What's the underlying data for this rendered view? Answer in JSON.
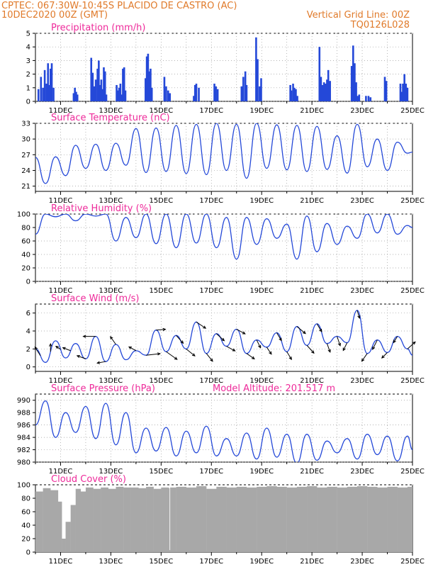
{
  "header": {
    "line1_left": "CPTEC:   067:30W-10:45S   PLACIDO DE CASTRO (AC)",
    "line2_left": "10DEC2020 00Z (GMT)",
    "line2_right": "Vertical Grid Line: 00Z",
    "line3_right": "TQ0126L028"
  },
  "colors": {
    "header": "#e07a2a",
    "title": "#ee2a9a",
    "line": "#2448d8",
    "bar": "#2448d8",
    "cloud": "#a8a8a8",
    "arrow": "#000000",
    "grid": "#9a9a9a"
  },
  "x_tick_labels": [
    "11DEC",
    "13DEC",
    "15DEC",
    "17DEC",
    "19DEC",
    "21DEC",
    "23DEC",
    "25DEC"
  ],
  "chart_data": [
    {
      "type": "bar",
      "title": "Precipitation (mm/h)",
      "xlim": [
        0,
        15
      ],
      "ylim": [
        0,
        5
      ],
      "yticks": [
        "0",
        "1",
        "2",
        "3",
        "4",
        "5"
      ],
      "grid": true,
      "x": [
        0.12,
        0.22,
        0.3,
        0.37,
        0.44,
        0.5,
        0.55,
        0.6,
        0.65,
        0.72,
        1.52,
        1.57,
        1.62,
        1.67,
        2.22,
        2.28,
        2.34,
        2.4,
        2.47,
        2.52,
        2.57,
        2.62,
        2.67,
        2.72,
        2.77,
        2.82,
        3.23,
        3.28,
        3.33,
        3.38,
        3.42,
        3.48,
        3.53,
        3.58,
        4.38,
        4.43,
        4.48,
        4.53,
        4.58,
        4.63,
        5.13,
        5.2,
        5.28,
        5.35,
        6.3,
        6.35,
        6.4,
        6.5,
        7.12,
        7.18,
        7.25,
        8.2,
        8.27,
        8.35,
        8.4,
        8.78,
        8.84,
        8.92,
        8.98,
        10.14,
        10.18,
        10.25,
        10.3,
        10.36,
        10.42,
        11.3,
        11.36,
        11.42,
        11.48,
        11.54,
        11.6,
        11.65,
        11.72,
        12.58,
        12.64,
        12.7,
        12.76,
        12.82,
        12.88,
        13.15,
        13.25,
        13.33,
        13.9,
        13.96,
        14.52,
        14.57,
        14.62,
        14.68,
        14.74,
        14.8
      ],
      "values": [
        0.9,
        1.8,
        1.0,
        2.3,
        1.3,
        2.8,
        1.2,
        2.4,
        2.8,
        1.0,
        0.6,
        1.0,
        0.7,
        0.5,
        3.2,
        2.1,
        1.1,
        1.6,
        2.4,
        3.0,
        1.2,
        1.6,
        0.9,
        2.5,
        2.2,
        0.5,
        1.2,
        0.8,
        1.0,
        1.3,
        0.5,
        2.4,
        2.5,
        0.8,
        1.7,
        3.3,
        3.5,
        2.2,
        2.4,
        1.0,
        1.8,
        1.1,
        0.8,
        0.6,
        0.4,
        1.2,
        1.3,
        1.0,
        1.3,
        1.1,
        0.9,
        1.1,
        1.8,
        2.2,
        1.2,
        4.7,
        3.1,
        1.1,
        1.7,
        1.2,
        0.8,
        1.3,
        1.0,
        0.9,
        0.4,
        4.0,
        1.8,
        1.2,
        1.4,
        1.3,
        1.6,
        2.3,
        1.5,
        2.6,
        4.1,
        2.8,
        1.4,
        0.4,
        0.5,
        0.4,
        0.4,
        0.3,
        1.8,
        1.5,
        1.3,
        0.7,
        1.3,
        2.0,
        1.3,
        1.0
      ]
    },
    {
      "type": "line",
      "title": "Surface Temperature (nC)",
      "xlim": [
        0,
        15
      ],
      "ylim": [
        20,
        33
      ],
      "yticks": [
        "21",
        "24",
        "27",
        "30",
        "33"
      ],
      "grid": true,
      "x": [
        0,
        0.4,
        0.8,
        1.2,
        1.6,
        2.0,
        2.4,
        2.8,
        3.2,
        3.6,
        4.0,
        4.4,
        4.8,
        5.2,
        5.6,
        6.0,
        6.4,
        6.8,
        7.2,
        7.6,
        8.0,
        8.4,
        8.8,
        9.2,
        9.6,
        10.0,
        10.4,
        10.8,
        11.2,
        11.6,
        12.0,
        12.4,
        12.8,
        13.2,
        13.6,
        14.0,
        14.4,
        14.8,
        15.0
      ],
      "values": [
        26.5,
        21.5,
        26.6,
        23.0,
        28.8,
        24.4,
        29.0,
        24.0,
        29.2,
        25.0,
        32.0,
        23.6,
        32.1,
        23.8,
        32.6,
        23.4,
        32.8,
        23.2,
        33.0,
        24.0,
        32.8,
        22.5,
        33.0,
        24.4,
        32.7,
        24.1,
        32.6,
        23.8,
        32.4,
        24.2,
        30.6,
        23.5,
        32.8,
        24.7,
        30.0,
        24.0,
        29.4,
        27.3,
        27.5
      ]
    },
    {
      "type": "line",
      "title": "Relative Humidity (%)",
      "xlim": [
        0,
        15
      ],
      "ylim": [
        0,
        100
      ],
      "yticks": [
        "0",
        "20",
        "40",
        "60",
        "80",
        "100"
      ],
      "grid": true,
      "x": [
        0,
        0.4,
        0.8,
        1.2,
        1.6,
        2.0,
        2.4,
        2.8,
        3.2,
        3.6,
        4.0,
        4.4,
        4.8,
        5.2,
        5.6,
        6.0,
        6.4,
        6.8,
        7.2,
        7.6,
        8.0,
        8.4,
        8.8,
        9.2,
        9.6,
        10.0,
        10.4,
        10.8,
        11.2,
        11.6,
        12.0,
        12.4,
        12.8,
        13.2,
        13.6,
        14.0,
        14.4,
        14.8,
        15.0
      ],
      "values": [
        70,
        100,
        96,
        100,
        90,
        100,
        97,
        100,
        60,
        95,
        65,
        100,
        56,
        100,
        50,
        100,
        57,
        100,
        50,
        95,
        33,
        95,
        55,
        93,
        64,
        85,
        33,
        97,
        44,
        86,
        55,
        82,
        64,
        100,
        72,
        100,
        70,
        83,
        80
      ]
    },
    {
      "type": "line",
      "title": "Surface Wind (m/s)",
      "xlim": [
        0,
        15
      ],
      "ylim": [
        -0.5,
        7
      ],
      "yticks": [
        "0",
        "2",
        "4",
        "6"
      ],
      "grid": true,
      "x": [
        0,
        0.4,
        0.8,
        1.2,
        1.6,
        2.0,
        2.4,
        2.8,
        3.2,
        3.6,
        4.0,
        4.4,
        4.8,
        5.2,
        5.6,
        6.0,
        6.4,
        6.8,
        7.2,
        7.6,
        8.0,
        8.4,
        8.8,
        9.2,
        9.6,
        10.0,
        10.4,
        10.8,
        11.2,
        11.6,
        12.0,
        12.4,
        12.8,
        13.2,
        13.6,
        14.0,
        14.4,
        14.8,
        15.0
      ],
      "values": [
        2.0,
        0.5,
        2.9,
        1.0,
        2.6,
        0.9,
        3.4,
        0.6,
        2.5,
        0.8,
        1.8,
        1.3,
        4.1,
        1.7,
        3.5,
        2.0,
        5.0,
        1.5,
        3.7,
        2.3,
        4.2,
        1.5,
        3.0,
        2.2,
        3.8,
        1.7,
        4.5,
        2.4,
        4.8,
        2.6,
        3.4,
        2.7,
        6.3,
        1.5,
        3.0,
        1.6,
        3.4,
        2.0,
        1.3
      ],
      "vectors": {
        "x": [
          0.2,
          0.6,
          1.0,
          1.4,
          2.0,
          2.4,
          2.8,
          3.2,
          4.0,
          4.4,
          4.8,
          5.2,
          5.6,
          6.0,
          6.4,
          6.8,
          7.2,
          7.6,
          8.0,
          8.4,
          8.8,
          9.2,
          9.6,
          10.0,
          10.4,
          10.8,
          11.2,
          11.6,
          12.0,
          12.4,
          12.8,
          13.2,
          13.6,
          14.0,
          14.4,
          14.8
        ],
        "u": [
          -0.7,
          0.0,
          -0.6,
          -1.0,
          -1.1,
          -1.6,
          -1.1,
          -0.7,
          -0.9,
          1.8,
          1.2,
          1.4,
          0.9,
          1.1,
          1.2,
          0.8,
          1.0,
          1.1,
          1.1,
          1.0,
          0.5,
          0.6,
          0.6,
          0.6,
          1.1,
          0.9,
          0.6,
          0.4,
          0.4,
          -0.5,
          0.3,
          -0.7,
          -0.6,
          -0.7,
          -0.5,
          1.0
        ],
        "v": [
          1.1,
          1.0,
          0.4,
          0.4,
          0.4,
          0.0,
          -0.2,
          1.0,
          0.5,
          0.2,
          0.1,
          -1.0,
          -1.0,
          -0.9,
          -0.8,
          -1.0,
          -0.9,
          -0.6,
          -0.6,
          -0.7,
          -1.0,
          -0.9,
          -1.0,
          -1.0,
          -0.9,
          -1.0,
          -1.0,
          -1.1,
          -1.2,
          -1.0,
          -1.0,
          -1.0,
          -1.2,
          -0.7,
          -0.8,
          0.9
        ]
      }
    },
    {
      "type": "line",
      "title": "Surface Pressure (hPa)",
      "annotation": "Model Altitude: 201.517 m",
      "xlim": [
        0,
        15
      ],
      "ylim": [
        980,
        991
      ],
      "yticks": [
        "980",
        "982",
        "984",
        "986",
        "988",
        "990"
      ],
      "grid": true,
      "x": [
        0,
        0.4,
        0.8,
        1.2,
        1.6,
        2.0,
        2.4,
        2.8,
        3.2,
        3.6,
        4.0,
        4.4,
        4.8,
        5.2,
        5.6,
        6.0,
        6.4,
        6.8,
        7.2,
        7.6,
        8.0,
        8.4,
        8.8,
        9.2,
        9.6,
        10.0,
        10.4,
        10.8,
        11.2,
        11.6,
        12.0,
        12.4,
        12.8,
        13.2,
        13.6,
        14.0,
        14.4,
        14.8,
        15.0
      ],
      "values": [
        986.0,
        989.9,
        984.0,
        988.0,
        984.8,
        989.0,
        983.8,
        989.5,
        982.8,
        988.0,
        981.5,
        985.5,
        981.8,
        985.6,
        981.0,
        985.0,
        981.5,
        985.8,
        981.0,
        983.8,
        981.0,
        984.7,
        980.5,
        985.5,
        980.8,
        984.5,
        979.8,
        984.5,
        980.3,
        983.4,
        981.5,
        983.8,
        980.5,
        984.5,
        981.2,
        984.2,
        980.2,
        984.2,
        982.0
      ]
    },
    {
      "type": "area",
      "title": "Cloud Cover (%)",
      "xlim": [
        0,
        15
      ],
      "ylim": [
        0,
        100
      ],
      "yticks": [
        "0",
        "20",
        "40",
        "60",
        "80",
        "100"
      ],
      "grid": false,
      "x": [
        0,
        0.3,
        0.6,
        0.9,
        1.05,
        1.2,
        1.4,
        1.6,
        1.8,
        2.0,
        2.3,
        2.6,
        2.9,
        3.2,
        3.5,
        3.8,
        4.1,
        4.4,
        4.7,
        5.0,
        5.3,
        5.33,
        5.36,
        5.6,
        6.0,
        6.4,
        6.8,
        7.2,
        7.6,
        8.0,
        8.4,
        8.8,
        9.2,
        9.6,
        10.0,
        10.4,
        10.8,
        11.2,
        11.6,
        12.0,
        12.4,
        12.8,
        13.2,
        13.6,
        14.0,
        14.4,
        14.8,
        15.0
      ],
      "values": [
        90,
        95,
        92,
        75,
        20,
        45,
        70,
        94,
        90,
        96,
        94,
        96,
        94,
        97,
        96,
        96,
        95,
        97,
        94,
        96,
        95,
        3,
        96,
        97,
        96,
        98,
        94,
        97,
        96,
        97,
        96,
        97,
        98,
        97,
        96,
        97,
        98,
        96,
        97,
        96,
        97,
        98,
        97,
        96,
        97,
        96,
        97,
        97
      ]
    }
  ]
}
